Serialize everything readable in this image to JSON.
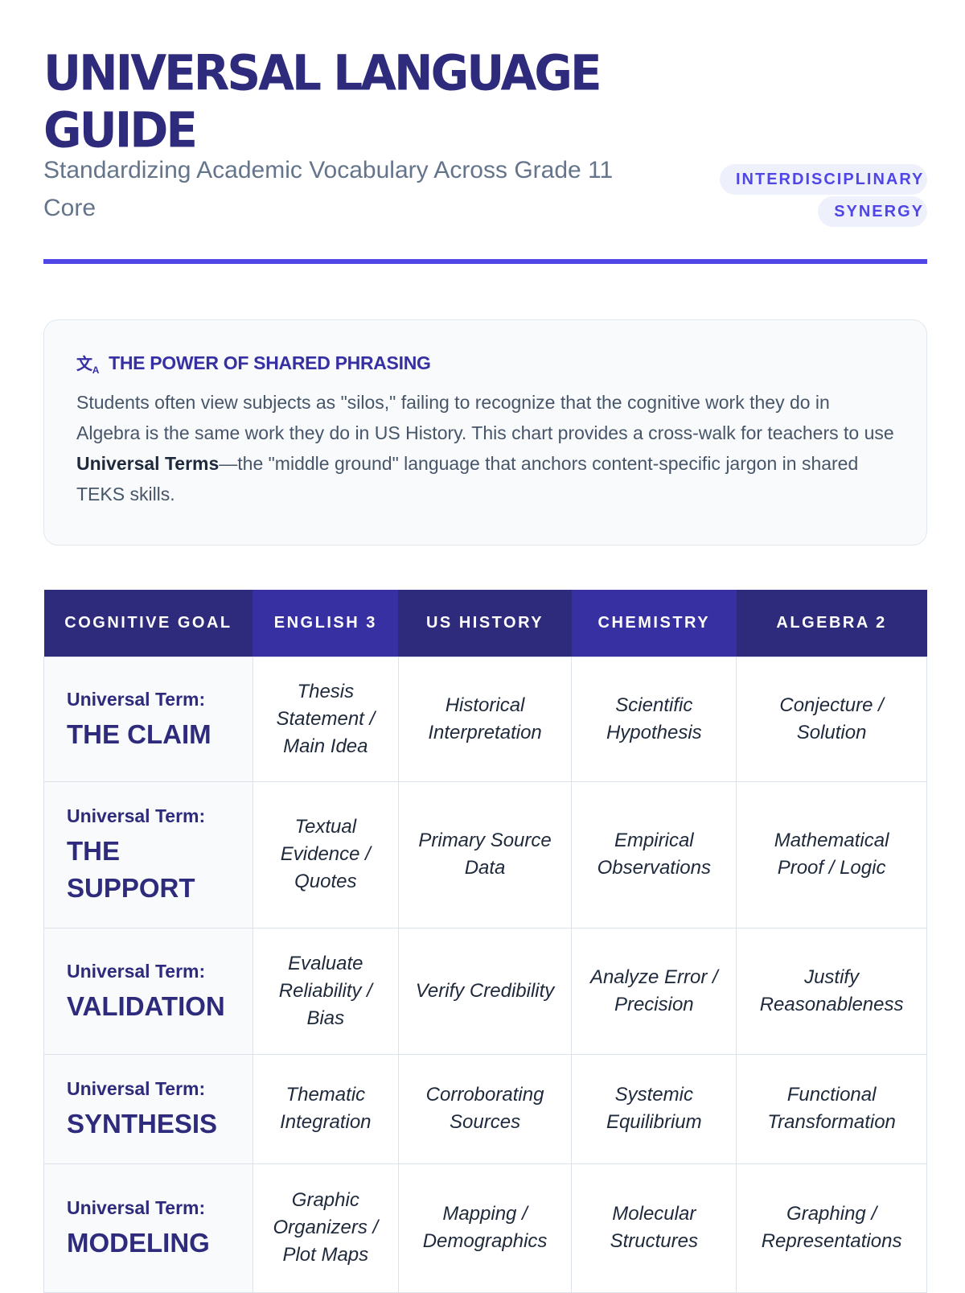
{
  "header": {
    "title": "UNIVERSAL LANGUAGE GUIDE",
    "subtitle": "Standardizing Academic Vocabulary Across Grade 11 Core",
    "badge": "INTERDISCIPLINARY SYNERGY"
  },
  "callout": {
    "icon": "translate-icon",
    "heading": "THE POWER OF SHARED PHRASING",
    "text_before": "Students often view subjects as \"silos,\" failing to recognize that the cognitive work they do in Algebra is the same work they do in US History. This chart provides a cross-walk for teachers to use ",
    "bold": "Universal Terms",
    "text_after": "—the \"middle ground\" language that anchors content-specific jargon in shared TEKS skills."
  },
  "table": {
    "headers": [
      "COGNITIVE GOAL",
      "ENGLISH 3",
      "US HISTORY",
      "CHEMISTRY",
      "ALGEBRA 2"
    ],
    "rows": [
      {
        "label": "Universal Term:",
        "term": "THE CLAIM",
        "cells": [
          "Thesis Statement / Main Idea",
          "Historical Interpretation",
          "Scientific Hypothesis",
          "Conjecture / Solution"
        ]
      },
      {
        "label": "Universal Term:",
        "term": "THE SUPPORT",
        "cells": [
          "Textual Evidence / Quotes",
          "Primary Source Data",
          "Empirical Observations",
          "Mathematical Proof / Logic"
        ]
      },
      {
        "label": "Universal Term:",
        "term": "VALIDATION",
        "cells": [
          "Evaluate Reliability / Bias",
          "Verify Credibility",
          "Analyze Error / Precision",
          "Justify Reasonableness"
        ]
      },
      {
        "label": "Universal Term:",
        "term": "SYNTHESIS",
        "cells": [
          "Thematic Integration",
          "Corroborating Sources",
          "Systemic Equilibrium",
          "Functional Transformation"
        ]
      },
      {
        "label": "Universal Term:",
        "term": "MODELING",
        "cells": [
          "Graphic Organizers / Plot Maps",
          "Mapping / Demographics",
          "Molecular Structures",
          "Graphing / Representations"
        ]
      }
    ]
  },
  "colors": {
    "primary": "#2e2a7c",
    "accent": "#4f46e5",
    "header_alt": "#3730a3"
  }
}
